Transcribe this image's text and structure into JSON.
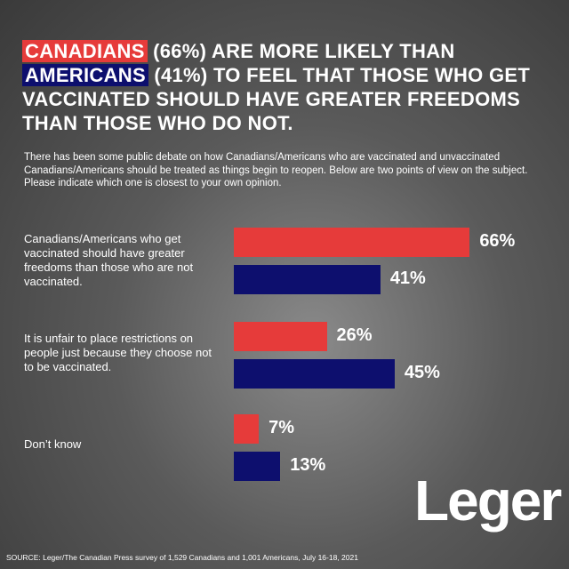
{
  "chart_data": {
    "type": "bar",
    "orientation": "horizontal",
    "title_parts": [
      "CANADIANS",
      " (66%) ARE MORE LIKELY THAN ",
      "AMERICANS",
      " (41%) TO FEEL THAT THOSE WHO GET VACCINATED SHOULD HAVE GREATER FREEDOMS THAN THOSE WHO DO NOT."
    ],
    "subtitle": "There has been some public debate on how Canadians/Americans who are vaccinated and unvaccinated Canadians/Americans should be treated as things begin to reopen. Below are two points of view on the subject. Please indicate which one is closest to your own opinion.",
    "categories": [
      "Canadians/Americans who get vaccinated should have greater freedoms than those who are not vaccinated.",
      "It is unfair to place restrictions on people just because they choose not to be vaccinated.",
      "Don’t know"
    ],
    "series": [
      {
        "color": "#e63b3a",
        "values": [
          66,
          26,
          7
        ],
        "value_labels": [
          "66%",
          "26%",
          "7%"
        ]
      },
      {
        "color": "#0d0f6e",
        "values": [
          41,
          45,
          13
        ],
        "value_labels": [
          "41%",
          "45%",
          "13%"
        ]
      }
    ],
    "source": "SOURCE: Leger/The Canadian Press survey of 1,529 Canadians and 1,001 Americans, July 16-18, 2021",
    "logo": "Leger"
  }
}
